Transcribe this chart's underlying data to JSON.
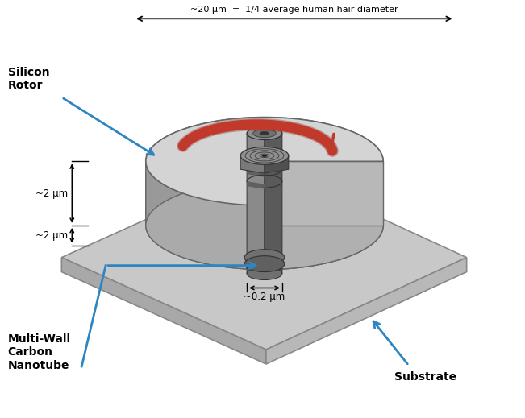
{
  "title": "~20 μm  =  1/4 average human hair diameter",
  "label_silicon_rotor": "Silicon\nRotor",
  "label_mwcnt": "Multi-Wall\nCarbon\nNanotube",
  "label_substrate": "Substrate",
  "dim_2um_top": "~2 μm",
  "dim_2um_bot": "~2 μm",
  "dim_02um": "~0.2 μm",
  "bg_color": "#ffffff",
  "substrate_top": "#c8c8c8",
  "substrate_left": "#a8a8a8",
  "substrate_right": "#b8b8b8",
  "substrate_edge": "#888888",
  "rotor_top": "#d4d4d4",
  "rotor_left": "#aaaaaa",
  "rotor_right": "#999999",
  "rotor_cut_face": "#bbbbbb",
  "nanotube_light": "#888888",
  "nanotube_mid": "#666666",
  "nanotube_dark": "#444444",
  "nanotube_darkest": "#333333",
  "arrow_red": "#c0392b",
  "ann_blue": "#2e86c1",
  "black": "#000000"
}
